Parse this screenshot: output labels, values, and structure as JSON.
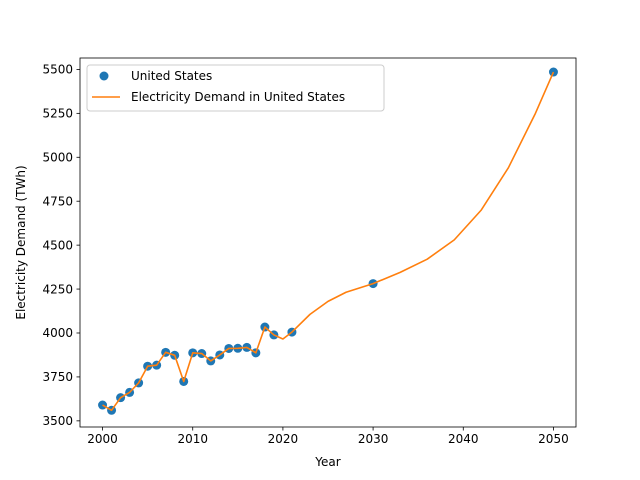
{
  "chart_data": {
    "type": "scatter",
    "xlabel": "Year",
    "ylabel": "Electricity Demand (TWh)",
    "xlim": [
      1997.5,
      2052.5
    ],
    "ylim": [
      3465,
      5565
    ],
    "xticks": [
      2000,
      2010,
      2020,
      2030,
      2040,
      2050
    ],
    "yticks": [
      3500,
      3750,
      4000,
      4250,
      4500,
      4750,
      5000,
      5250,
      5500
    ],
    "grid": false,
    "legend_position": "top-left",
    "series": [
      {
        "name": "United States",
        "kind": "scatter",
        "color": "#1f77b4",
        "x": [
          2000,
          2001,
          2002,
          2003,
          2004,
          2005,
          2006,
          2007,
          2008,
          2009,
          2010,
          2011,
          2012,
          2013,
          2014,
          2015,
          2016,
          2017,
          2018,
          2019,
          2021,
          2030,
          2050
        ],
        "y": [
          3590,
          3560,
          3632,
          3662,
          3716,
          3811,
          3817,
          3890,
          3873,
          3724,
          3887,
          3883,
          3841,
          3875,
          3912,
          3913,
          3918,
          3887,
          4034,
          3989,
          4005,
          4281,
          5485
        ]
      },
      {
        "name": "Electricity Demand in United States",
        "kind": "line",
        "color": "#ff7f0e",
        "x": [
          2000,
          2001,
          2002,
          2003,
          2004,
          2005,
          2006,
          2007,
          2008,
          2009,
          2010,
          2011,
          2012,
          2013,
          2014,
          2015,
          2016,
          2017,
          2018,
          2019,
          2020,
          2021,
          2023,
          2025,
          2027,
          2030,
          2033,
          2036,
          2039,
          2042,
          2045,
          2048,
          2050
        ],
        "y": [
          3590,
          3560,
          3632,
          3662,
          3716,
          3811,
          3817,
          3890,
          3873,
          3724,
          3887,
          3883,
          3841,
          3875,
          3912,
          3913,
          3918,
          3887,
          4034,
          3989,
          3966,
          4005,
          4106,
          4180,
          4232,
          4281,
          4345,
          4420,
          4530,
          4700,
          4940,
          5250,
          5485
        ]
      }
    ]
  }
}
